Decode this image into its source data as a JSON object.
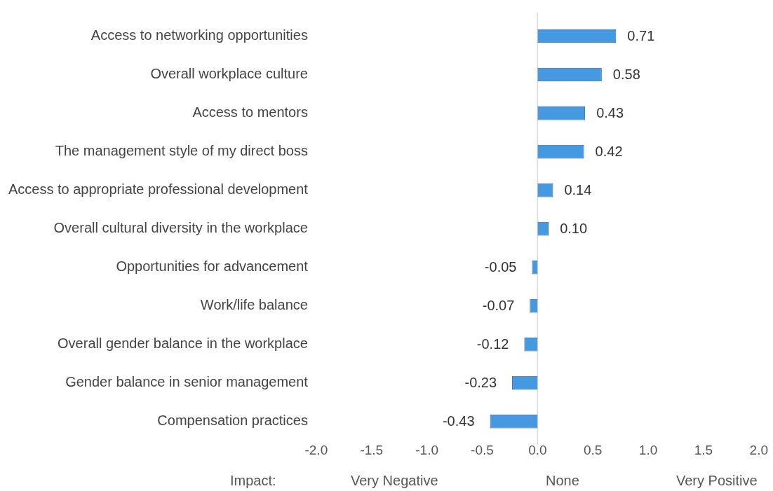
{
  "chart_data": {
    "type": "bar",
    "orientation": "horizontal",
    "categories": [
      "Access to networking opportunities",
      "Overall workplace culture",
      "Access to mentors",
      "The management style of my direct boss",
      "Access to appropriate professional development",
      "Overall cultural diversity in the workplace",
      "Opportunities for advancement",
      "Work/life balance",
      "Overall gender balance in the workplace",
      "Gender balance in senior management",
      "Compensation practices"
    ],
    "values": [
      0.71,
      0.58,
      0.43,
      0.42,
      0.14,
      0.1,
      -0.05,
      -0.07,
      -0.12,
      -0.23,
      -0.43
    ],
    "value_labels": [
      "0.71",
      "0.58",
      "0.43",
      "0.42",
      "0.14",
      "0.10",
      "-0.05",
      "-0.07",
      "-0.12",
      "-0.23",
      "-0.43"
    ],
    "color": "#4499e0",
    "xlim": [
      -2,
      2
    ],
    "xticks": [
      {
        "value": -2,
        "label": "-2.0"
      },
      {
        "value": -1.5,
        "label": "-1.5"
      },
      {
        "value": -1,
        "label": "-1.0"
      },
      {
        "value": -0.5,
        "label": "-0.5"
      },
      {
        "value": 0,
        "label": "0.0"
      },
      {
        "value": 0.5,
        "label": "0.5"
      },
      {
        "value": 1,
        "label": "1.0"
      },
      {
        "value": 1.5,
        "label": "1.5"
      },
      {
        "value": 2,
        "label": "2.0"
      }
    ],
    "ref_lines": [
      {
        "axis": "x",
        "value": 0,
        "color": "#d8d8d8"
      }
    ],
    "grid": false,
    "legend": false,
    "annotations": [
      "Impact:",
      "Very Negative",
      "None",
      "Very Positive"
    ]
  }
}
